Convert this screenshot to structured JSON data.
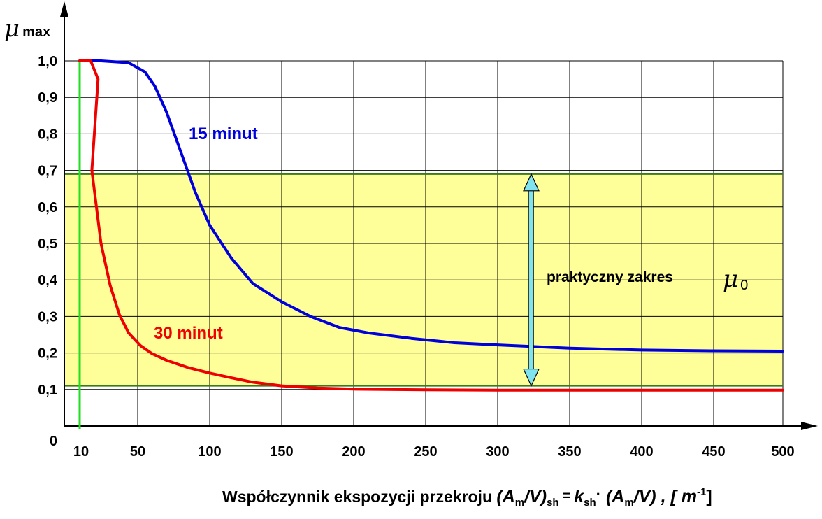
{
  "chart_data": {
    "type": "line",
    "title": "",
    "ylabel_symbol": "μ",
    "ylabel_subscript": "max",
    "ylim": [
      0,
      1.0
    ],
    "xlim": [
      10,
      500
    ],
    "y_ticks": [
      "0",
      "0,1",
      "0,2",
      "0,3",
      "0,4",
      "0,5",
      "0,6",
      "0,7",
      "0,8",
      "0,9",
      "1,0"
    ],
    "x_ticks": [
      "10",
      "50",
      "100",
      "150",
      "200",
      "250",
      "300",
      "350",
      "400",
      "450",
      "500"
    ],
    "xlabel": {
      "text": "Współczynnik ekspozycji przekroju ",
      "f1": "(A",
      "f1_sub": "m",
      "f2": "/V)",
      "f2_sub": "sh",
      "eq": " = ",
      "k": "k",
      "k_sub": "sh",
      "dot": "·",
      "f3": " (A",
      "f3_sub": "m",
      "f4": "/V) , [ m",
      "f4_sup": "-1",
      "f5": "]"
    },
    "grid": true,
    "band": {
      "from": 0.11,
      "to": 0.69,
      "color": "#ffff99"
    },
    "band_label": {
      "text": "praktyczny zakres",
      "symbol": "μ",
      "subscript": "0"
    },
    "series": [
      {
        "name": "15 minut",
        "color": "#0000dd",
        "x": [
          10,
          20,
          30,
          45,
          55,
          62,
          70,
          80,
          90,
          100,
          115,
          130,
          150,
          170,
          190,
          210,
          240,
          270,
          300,
          350,
          400,
          450,
          500
        ],
        "y": [
          1.0,
          1.0,
          1.0,
          0.995,
          0.97,
          0.93,
          0.86,
          0.75,
          0.64,
          0.55,
          0.46,
          0.39,
          0.34,
          0.3,
          0.27,
          0.255,
          0.24,
          0.228,
          0.222,
          0.213,
          0.208,
          0.206,
          0.205
        ]
      },
      {
        "name": "30 minut",
        "color": "#ee0000",
        "x": [
          10,
          16,
          20,
          25,
          30,
          35,
          40,
          45,
          52,
          60,
          70,
          85,
          100,
          115,
          130,
          150,
          175,
          200,
          250,
          300,
          400,
          500
        ],
        "y": [
          1.0,
          1.0,
          0.95,
          0.7,
          0.5,
          0.385,
          0.305,
          0.255,
          0.22,
          0.198,
          0.18,
          0.16,
          0.145,
          0.132,
          0.12,
          0.11,
          0.104,
          0.101,
          0.099,
          0.098,
          0.098,
          0.098
        ]
      }
    ],
    "series_label_colors": {
      "blue": "#0000dd",
      "red": "#ee0000"
    },
    "vline_x": 10,
    "vline_color": "#22dd22"
  }
}
